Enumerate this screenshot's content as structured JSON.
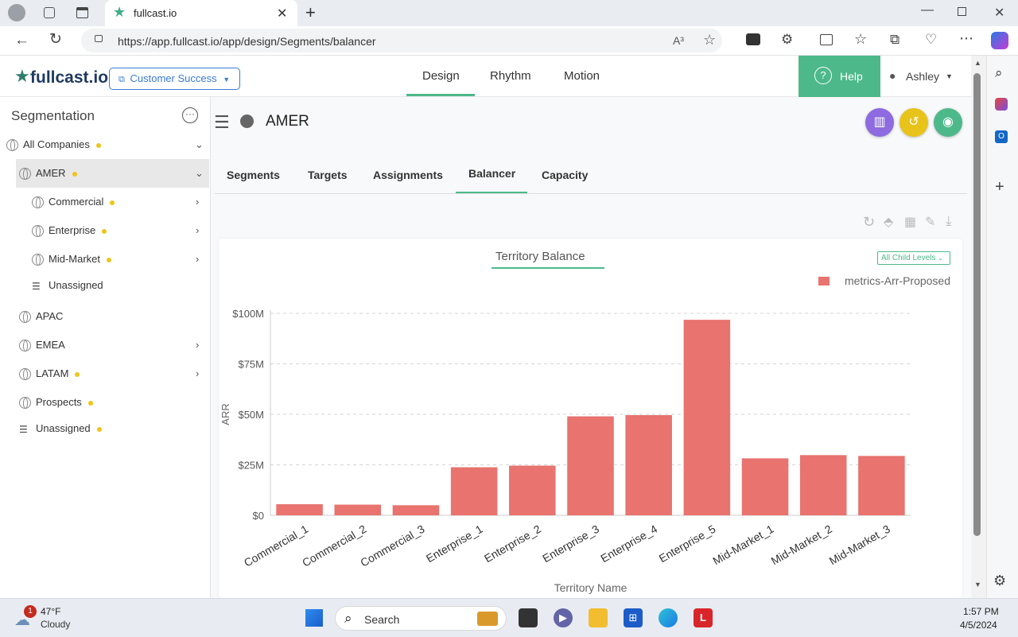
{
  "browser": {
    "tab_title": "fullcast.io",
    "url": "https://app.fullcast.io/app/design/Segments/balancer",
    "reader_label": "A³"
  },
  "header": {
    "logo": "fullcast.io",
    "org_selector": "Customer Success",
    "nav": [
      "Design",
      "Rhythm",
      "Motion"
    ],
    "active_nav": "Design",
    "help_label": "Help",
    "user_name": "Ashley"
  },
  "sidebar": {
    "title": "Segmentation",
    "items": [
      {
        "label": "All Companies"
      },
      {
        "label": "AMER"
      },
      {
        "label": "Commercial"
      },
      {
        "label": "Enterprise"
      },
      {
        "label": "Mid-Market"
      },
      {
        "label": "Unassigned"
      },
      {
        "label": "APAC"
      },
      {
        "label": "EMEA"
      },
      {
        "label": "LATAM"
      },
      {
        "label": "Prospects"
      },
      {
        "label": "Unassigned"
      }
    ]
  },
  "main": {
    "title": "AMER",
    "tabs": [
      "Segments",
      "Targets",
      "Assignments",
      "Balancer",
      "Capacity"
    ],
    "active_tab": "Balancer",
    "card_title": "Territory Balance",
    "level_select": "All Child Levels"
  },
  "chart_data": {
    "type": "bar",
    "title": "Territory Balance",
    "xlabel": "Territory Name",
    "ylabel": "ARR",
    "ylim": [
      0,
      100000000
    ],
    "yticks": [
      "$0",
      "$25M",
      "$50M",
      "$75M",
      "$100M"
    ],
    "legend_placement": "top-right",
    "grid": true,
    "categories": [
      "Commercial_1",
      "Commercial_2",
      "Commercial_3",
      "Enterprise_1",
      "Enterprise_2",
      "Enterprise_3",
      "Enterprise_4",
      "Enterprise_5",
      "Mid-Market_1",
      "Mid-Market_2",
      "Mid-Market_3"
    ],
    "series": [
      {
        "name": "metrics-Arr-Proposed",
        "color": "#e8736f",
        "values": [
          5500000,
          5300000,
          5000000,
          23800000,
          24600000,
          49000000,
          49600000,
          96800000,
          28200000,
          29800000,
          29400000
        ]
      }
    ]
  },
  "taskbar": {
    "weather_temp": "47°F",
    "weather_desc": "Cloudy",
    "weather_badge": "1",
    "search_label": "Search",
    "time": "1:57 PM",
    "date": "4/5/2024"
  },
  "colors": {
    "accent": "#4db98a",
    "bar": "#e8736f",
    "dot": "#f0c419"
  }
}
